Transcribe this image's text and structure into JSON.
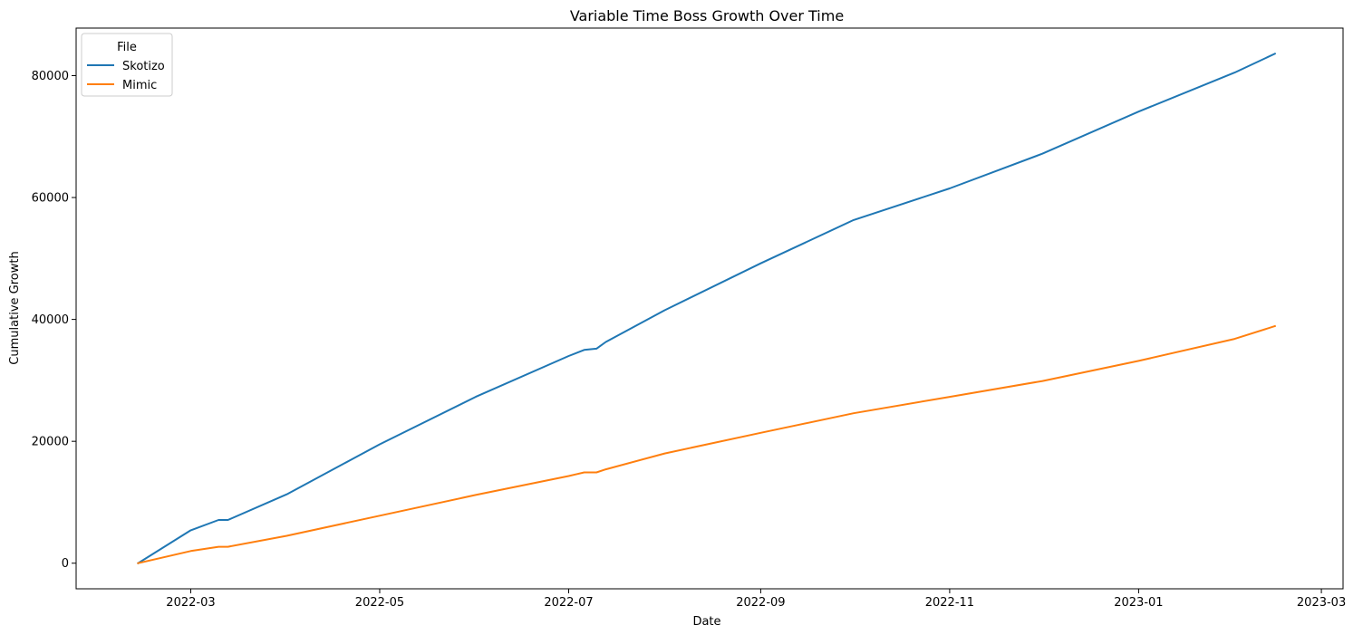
{
  "chart_data": {
    "type": "line",
    "title": "Variable Time Boss Growth Over Time",
    "xlabel": "Date",
    "ylabel": "Cumulative Growth",
    "xlim": [
      "2022-01-23",
      "2023-03-08"
    ],
    "ylim": [
      -4200,
      87800
    ],
    "x_ticks": [
      "2022-03",
      "2022-05",
      "2022-07",
      "2022-09",
      "2022-11",
      "2023-01",
      "2023-03"
    ],
    "y_ticks": [
      0,
      20000,
      40000,
      60000,
      80000
    ],
    "grid": false,
    "legend": {
      "title": "File",
      "placement": "top-left"
    },
    "series": [
      {
        "name": "Skotizo",
        "color": "#1f77b4",
        "points": [
          [
            "2022-02-12",
            0
          ],
          [
            "2022-03-01",
            5400
          ],
          [
            "2022-03-10",
            7100
          ],
          [
            "2022-03-13",
            7100
          ],
          [
            "2022-04-01",
            11300
          ],
          [
            "2022-05-01",
            19500
          ],
          [
            "2022-06-01",
            27300
          ],
          [
            "2022-07-01",
            34000
          ],
          [
            "2022-07-06",
            35000
          ],
          [
            "2022-07-10",
            35200
          ],
          [
            "2022-07-13",
            36300
          ],
          [
            "2022-08-01",
            41500
          ],
          [
            "2022-09-01",
            49200
          ],
          [
            "2022-10-01",
            56300
          ],
          [
            "2022-11-01",
            61500
          ],
          [
            "2022-12-01",
            67200
          ],
          [
            "2023-01-01",
            74100
          ],
          [
            "2023-02-01",
            80500
          ],
          [
            "2023-02-14",
            83600
          ]
        ]
      },
      {
        "name": "Mimic",
        "color": "#ff7f0e",
        "points": [
          [
            "2022-02-12",
            0
          ],
          [
            "2022-03-01",
            2000
          ],
          [
            "2022-03-10",
            2700
          ],
          [
            "2022-03-13",
            2700
          ],
          [
            "2022-04-01",
            4500
          ],
          [
            "2022-05-01",
            7800
          ],
          [
            "2022-06-01",
            11200
          ],
          [
            "2022-07-01",
            14300
          ],
          [
            "2022-07-06",
            14900
          ],
          [
            "2022-07-10",
            14900
          ],
          [
            "2022-07-13",
            15400
          ],
          [
            "2022-08-01",
            18000
          ],
          [
            "2022-09-01",
            21400
          ],
          [
            "2022-10-01",
            24600
          ],
          [
            "2022-11-01",
            27300
          ],
          [
            "2022-12-01",
            29900
          ],
          [
            "2023-01-01",
            33200
          ],
          [
            "2023-02-01",
            36800
          ],
          [
            "2023-02-14",
            38900
          ]
        ]
      }
    ]
  }
}
